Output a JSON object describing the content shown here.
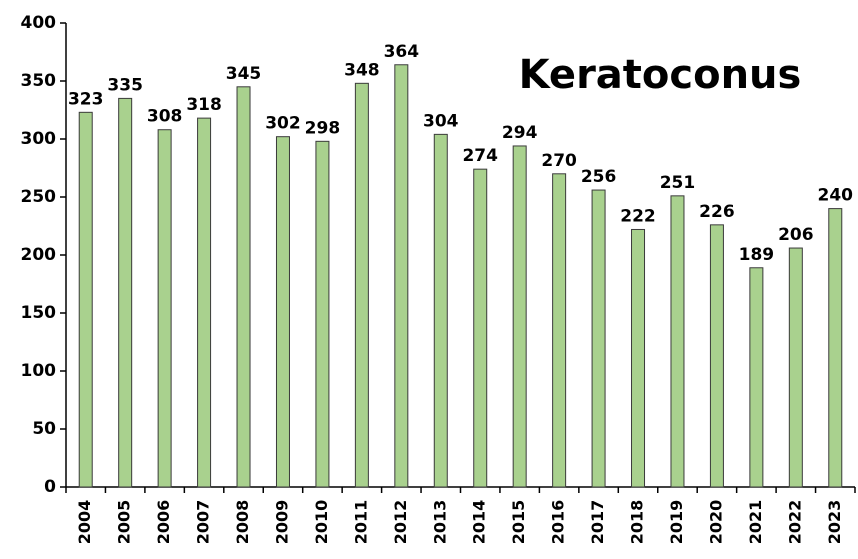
{
  "chart_data": {
    "type": "bar",
    "title": "Keratoconus",
    "categories": [
      "2004",
      "2005",
      "2006",
      "2007",
      "2008",
      "2009",
      "2010",
      "2011",
      "2012",
      "2013",
      "2014",
      "2015",
      "2016",
      "2017",
      "2018",
      "2019",
      "2020",
      "2021",
      "2022",
      "2023"
    ],
    "values": [
      323,
      335,
      308,
      318,
      345,
      302,
      298,
      348,
      364,
      304,
      274,
      294,
      270,
      256,
      222,
      251,
      226,
      189,
      206,
      240
    ],
    "color": "#a9d18e",
    "ylim": [
      0,
      400
    ],
    "yticks": [
      0,
      50,
      100,
      150,
      200,
      250,
      300,
      350,
      400
    ],
    "grid": false
  }
}
